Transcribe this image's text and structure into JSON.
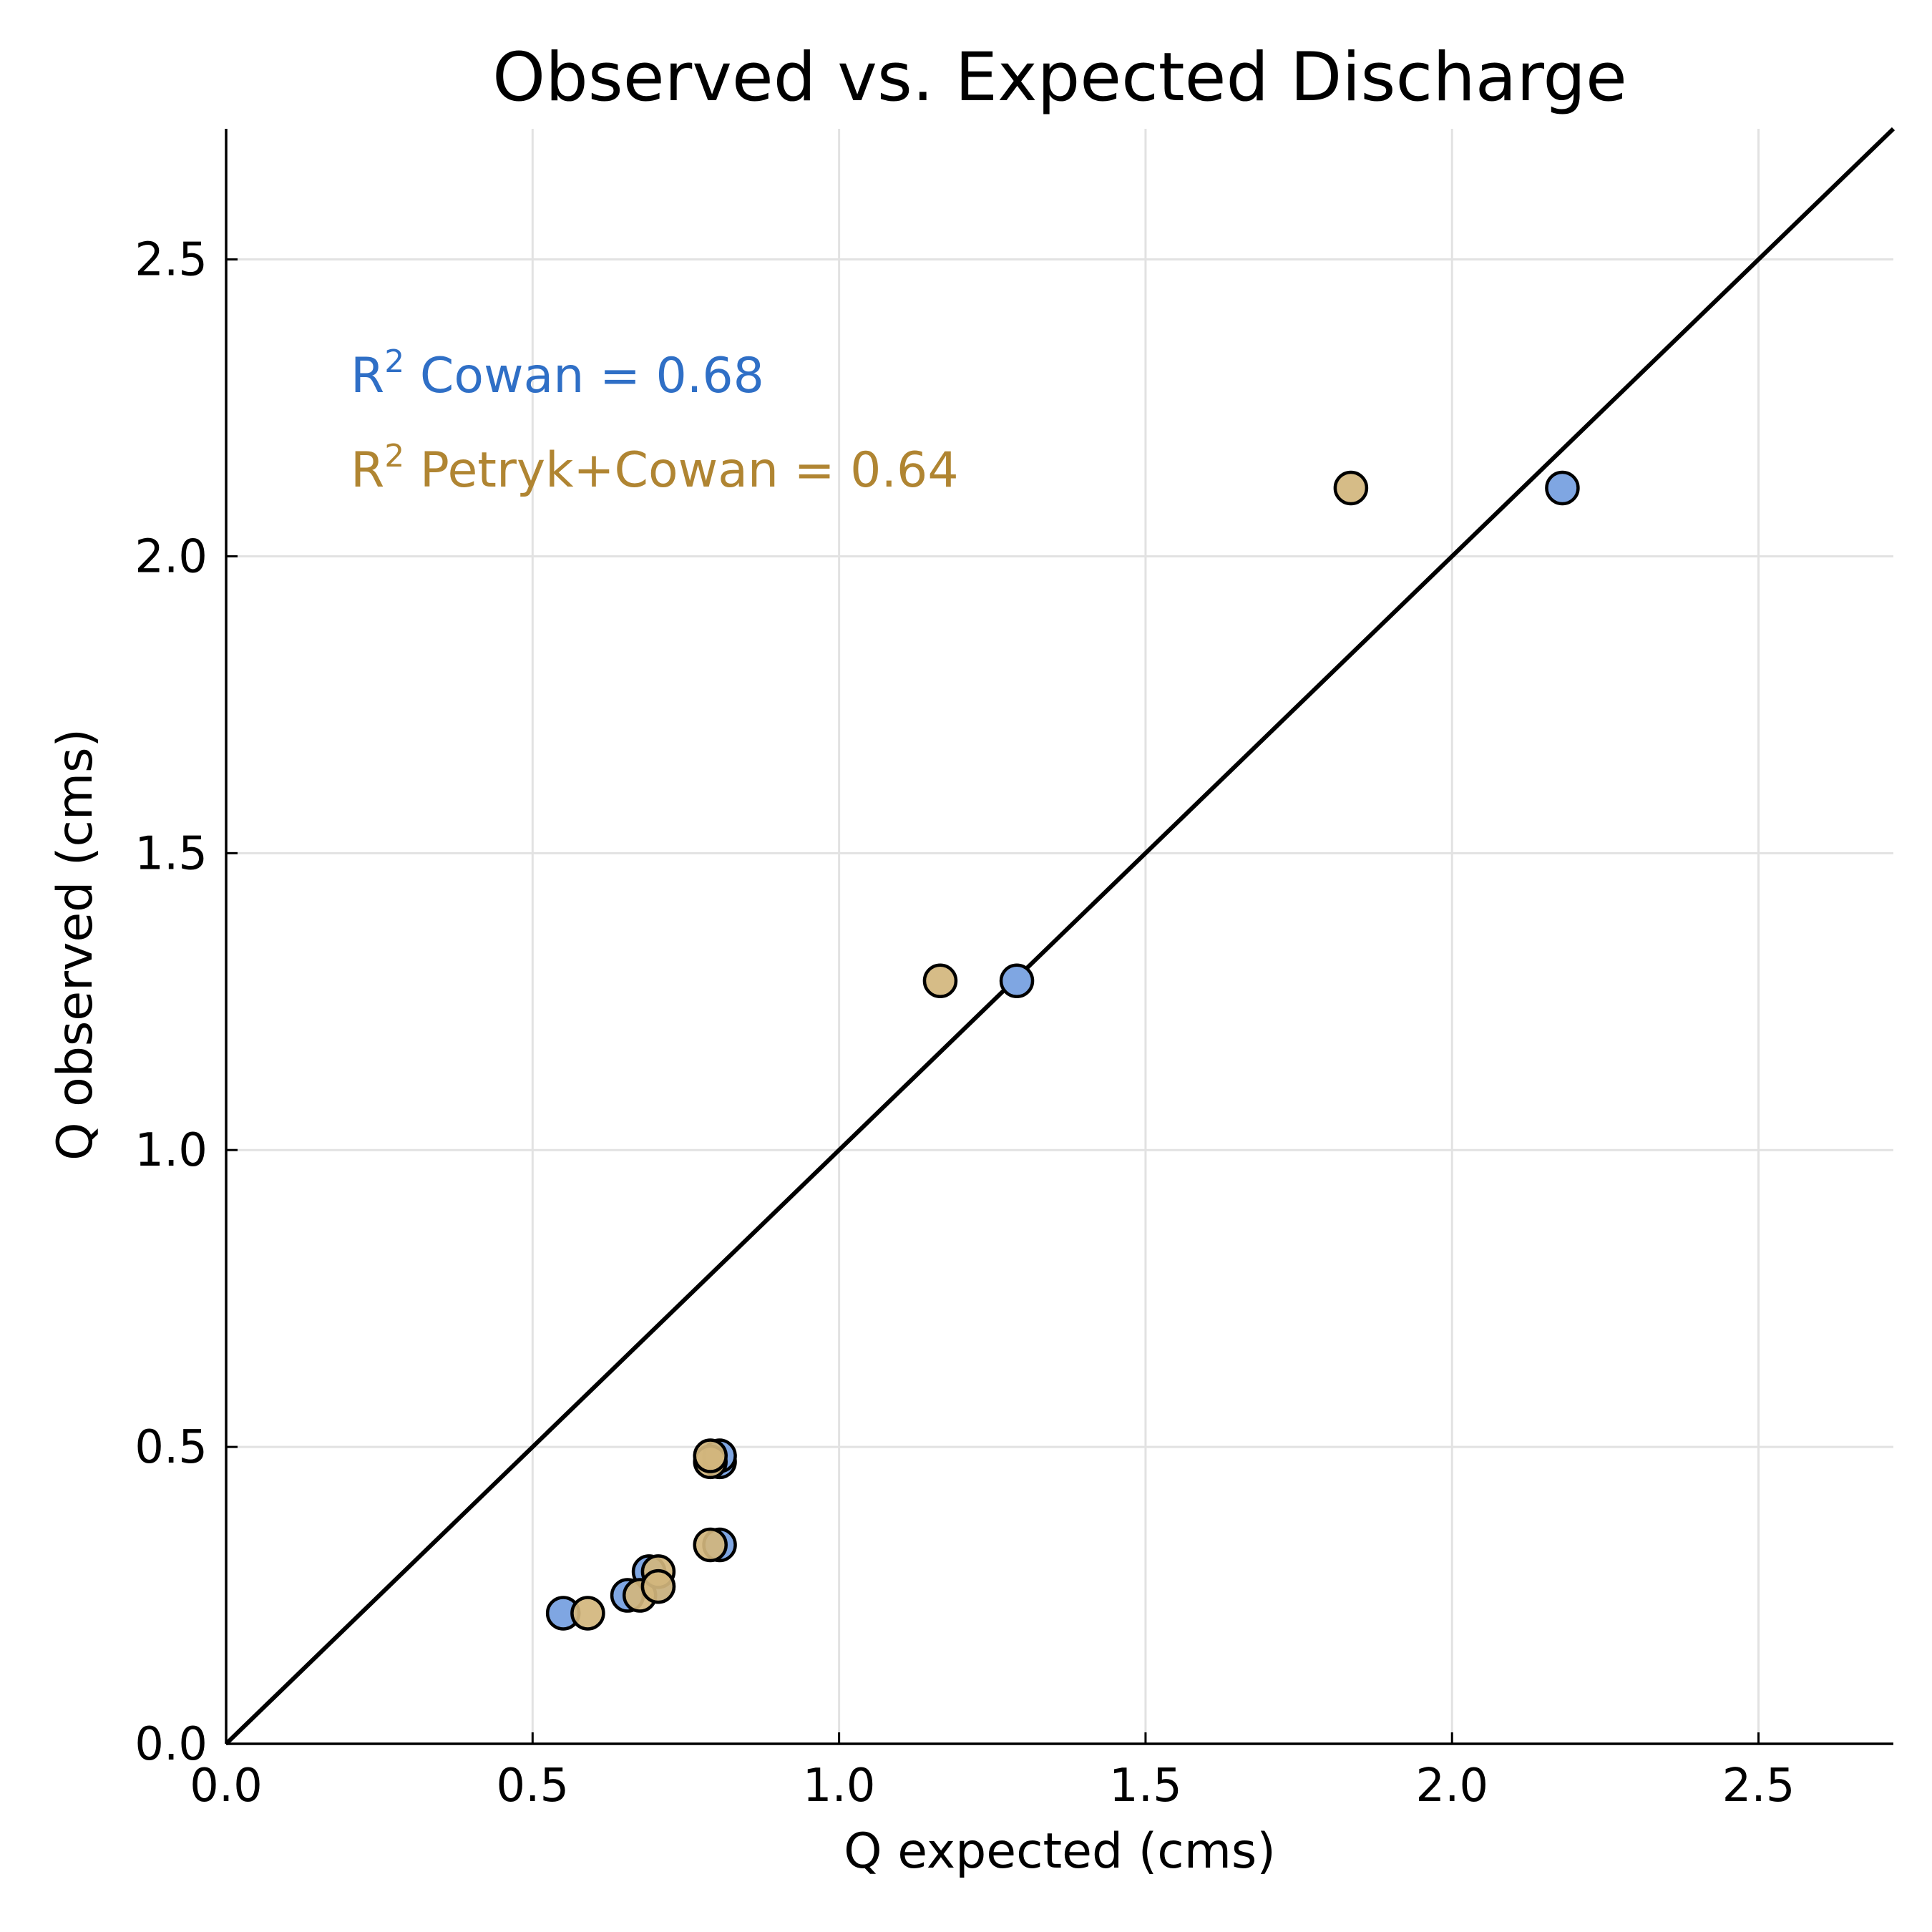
{
  "chart_data": {
    "type": "scatter",
    "title": "Observed vs. Expected Discharge",
    "xlabel": "Q expected (cms)",
    "ylabel": "Q observed (cms)",
    "xlim": [
      0.0,
      2.72
    ],
    "ylim": [
      0.0,
      2.72
    ],
    "xticks": [
      0.0,
      0.5,
      1.0,
      1.5,
      2.0,
      2.5
    ],
    "yticks": [
      0.0,
      0.5,
      1.0,
      1.5,
      2.0,
      2.5
    ],
    "xtick_labels": [
      "0.0",
      "0.5",
      "1.0",
      "1.5",
      "2.0",
      "2.5"
    ],
    "ytick_labels": [
      "0.0",
      "0.5",
      "1.0",
      "1.5",
      "2.0",
      "2.5"
    ],
    "grid": true,
    "reference_line": {
      "type": "1:1",
      "from": [
        0.0,
        0.0
      ],
      "to": [
        2.72,
        2.72
      ]
    },
    "series": [
      {
        "color": "#7fa6e2",
        "points": [
          {
            "x": 0.55,
            "y": 0.22
          },
          {
            "x": 0.655,
            "y": 0.25
          },
          {
            "x": 0.69,
            "y": 0.29
          },
          {
            "x": 0.705,
            "y": 0.265
          },
          {
            "x": 0.805,
            "y": 0.335
          },
          {
            "x": 0.805,
            "y": 0.475
          },
          {
            "x": 0.805,
            "y": 0.485
          },
          {
            "x": 1.29,
            "y": 1.285
          },
          {
            "x": 2.18,
            "y": 2.115
          }
        ]
      },
      {
        "color": "#d3b67d",
        "points": [
          {
            "x": 0.59,
            "y": 0.22
          },
          {
            "x": 0.675,
            "y": 0.25
          },
          {
            "x": 0.705,
            "y": 0.29
          },
          {
            "x": 0.705,
            "y": 0.265
          },
          {
            "x": 0.79,
            "y": 0.335
          },
          {
            "x": 0.79,
            "y": 0.475
          },
          {
            "x": 0.79,
            "y": 0.485
          },
          {
            "x": 1.165,
            "y": 1.285
          },
          {
            "x": 1.835,
            "y": 2.115
          }
        ]
      }
    ],
    "annotations": [
      {
        "prefix": "R",
        "sup": "2",
        "text": " Cowan = 0.68",
        "color": "#2f6fc6"
      },
      {
        "prefix": "R",
        "sup": "2",
        "text": " Petryk+Cowan = 0.64",
        "color": "#b08532"
      }
    ]
  }
}
